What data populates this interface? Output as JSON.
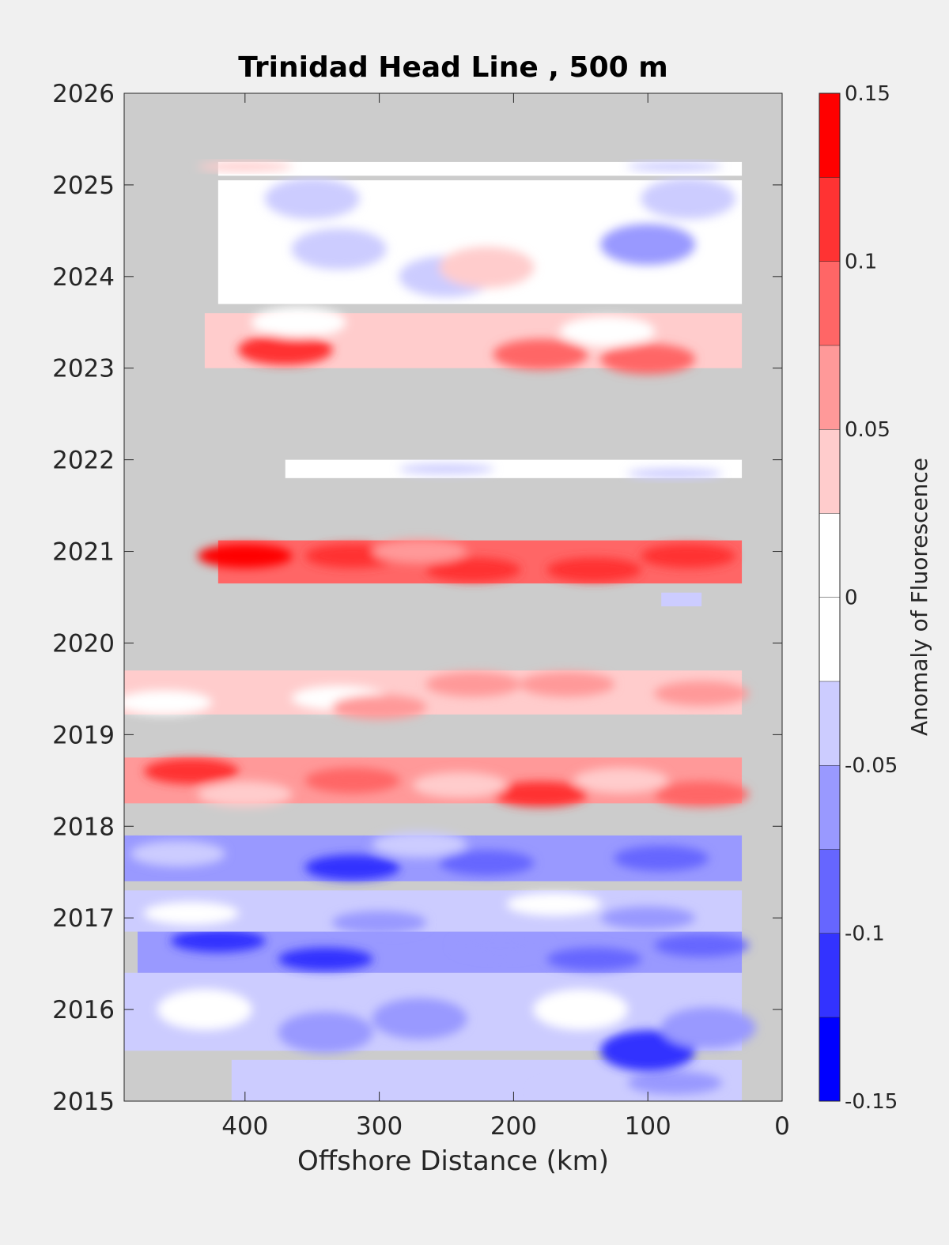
{
  "chart_data": {
    "type": "heatmap",
    "title": "Trinidad Head Line , 500 m",
    "xlabel": "Offshore Distance (km)",
    "ylabel": "",
    "xlim": [
      490,
      0
    ],
    "ylim": [
      2015,
      2026
    ],
    "x_direction": "reversed",
    "x_ticks": [
      400,
      300,
      200,
      100,
      0
    ],
    "y_ticks": [
      2015,
      2016,
      2017,
      2018,
      2019,
      2020,
      2021,
      2022,
      2023,
      2024,
      2025,
      2026
    ],
    "colorbar": {
      "label": "Anomaly of Fluorescence",
      "range": [
        -0.15,
        0.15
      ],
      "tick_values": [
        -0.15,
        -0.1,
        -0.05,
        0,
        0.05,
        0.1,
        0.15
      ],
      "tick_labels": [
        "-0.15",
        "-0.1",
        "-0.05",
        "0",
        "0.05",
        "0.1",
        "0.15"
      ],
      "levels": [
        {
          "from": -0.15,
          "to": -0.125,
          "color": "#0000ff"
        },
        {
          "from": -0.125,
          "to": -0.1,
          "color": "#3333ff"
        },
        {
          "from": -0.1,
          "to": -0.075,
          "color": "#6666ff"
        },
        {
          "from": -0.075,
          "to": -0.05,
          "color": "#9999ff"
        },
        {
          "from": -0.05,
          "to": -0.025,
          "color": "#ccccff"
        },
        {
          "from": -0.025,
          "to": 0,
          "color": "#ffffff"
        },
        {
          "from": 0,
          "to": 0.025,
          "color": "#ffffff"
        },
        {
          "from": 0.025,
          "to": 0.05,
          "color": "#ffcccc"
        },
        {
          "from": 0.05,
          "to": 0.075,
          "color": "#ff9999"
        },
        {
          "from": 0.075,
          "to": 0.1,
          "color": "#ff6666"
        },
        {
          "from": 0.1,
          "to": 0.125,
          "color": "#ff3333"
        },
        {
          "from": 0.125,
          "to": 0.15,
          "color": "#ff0000"
        }
      ]
    },
    "no_data_color": "#cccccc",
    "bands": [
      {
        "t_start": 2015.0,
        "t_end": 2015.45,
        "x_near": 30,
        "x_far": 410,
        "base": -0.03,
        "patches": [
          {
            "x": 80,
            "t": 2015.2,
            "value": -0.06
          },
          {
            "x": 150,
            "t": 2015.1,
            "value": -0.04
          }
        ]
      },
      {
        "t_start": 2015.55,
        "t_end": 2016.4,
        "x_near": 30,
        "x_far": 490,
        "base": -0.03,
        "patches": [
          {
            "x": 340,
            "t": 2015.75,
            "value": -0.06
          },
          {
            "x": 270,
            "t": 2015.9,
            "value": -0.07
          },
          {
            "x": 100,
            "t": 2015.55,
            "value": -0.1
          },
          {
            "x": 150,
            "t": 2016.0,
            "value": 0.0
          },
          {
            "x": 430,
            "t": 2016.0,
            "value": 0.0
          },
          {
            "x": 55,
            "t": 2015.8,
            "value": -0.06
          }
        ]
      },
      {
        "t_start": 2016.4,
        "t_end": 2016.85,
        "x_near": 30,
        "x_far": 480,
        "base": -0.06,
        "patches": [
          {
            "x": 340,
            "t": 2016.55,
            "value": -0.11
          },
          {
            "x": 420,
            "t": 2016.75,
            "value": -0.1
          },
          {
            "x": 140,
            "t": 2016.55,
            "value": -0.09
          },
          {
            "x": 60,
            "t": 2016.7,
            "value": -0.09
          },
          {
            "x": 210,
            "t": 2016.7,
            "value": -0.07
          }
        ]
      },
      {
        "t_start": 2016.85,
        "t_end": 2017.3,
        "x_near": 30,
        "x_far": 490,
        "base": -0.03,
        "patches": [
          {
            "x": 440,
            "t": 2017.05,
            "value": 0.0
          },
          {
            "x": 170,
            "t": 2017.15,
            "value": 0.0
          },
          {
            "x": 300,
            "t": 2016.95,
            "value": -0.07
          },
          {
            "x": 100,
            "t": 2017.0,
            "value": -0.06
          }
        ]
      },
      {
        "t_start": 2017.4,
        "t_end": 2017.9,
        "x_near": 30,
        "x_far": 490,
        "base": -0.06,
        "patches": [
          {
            "x": 320,
            "t": 2017.55,
            "value": -0.11
          },
          {
            "x": 220,
            "t": 2017.6,
            "value": -0.09
          },
          {
            "x": 90,
            "t": 2017.65,
            "value": -0.09
          },
          {
            "x": 450,
            "t": 2017.7,
            "value": -0.04
          },
          {
            "x": 270,
            "t": 2017.8,
            "value": -0.03
          }
        ]
      },
      {
        "t_start": 2018.25,
        "t_end": 2018.75,
        "x_near": 30,
        "x_far": 490,
        "base": 0.07,
        "patches": [
          {
            "x": 440,
            "t": 2018.6,
            "value": 0.11
          },
          {
            "x": 180,
            "t": 2018.35,
            "value": 0.12
          },
          {
            "x": 60,
            "t": 2018.35,
            "value": 0.1
          },
          {
            "x": 320,
            "t": 2018.5,
            "value": 0.08
          },
          {
            "x": 400,
            "t": 2018.35,
            "value": 0.04
          },
          {
            "x": 240,
            "t": 2018.45,
            "value": 0.04
          },
          {
            "x": 120,
            "t": 2018.5,
            "value": 0.04
          }
        ]
      },
      {
        "t_start": 2019.22,
        "t_end": 2019.7,
        "x_near": 30,
        "x_far": 490,
        "base": 0.035,
        "patches": [
          {
            "x": 460,
            "t": 2019.35,
            "value": 0.0
          },
          {
            "x": 330,
            "t": 2019.4,
            "value": 0.0
          },
          {
            "x": 160,
            "t": 2019.55,
            "value": 0.06
          },
          {
            "x": 230,
            "t": 2019.55,
            "value": 0.06
          },
          {
            "x": 60,
            "t": 2019.45,
            "value": 0.06
          },
          {
            "x": 300,
            "t": 2019.3,
            "value": 0.06
          }
        ]
      },
      {
        "t_start": 2020.4,
        "t_end": 2020.55,
        "x_near": 60,
        "x_far": 90,
        "base": -0.03,
        "patches": []
      },
      {
        "t_start": 2020.65,
        "t_end": 2021.12,
        "x_near": 30,
        "x_far": 420,
        "base": 0.08,
        "patches": [
          {
            "x": 400,
            "t": 2020.95,
            "value": 0.14
          },
          {
            "x": 320,
            "t": 2020.95,
            "value": 0.11
          },
          {
            "x": 140,
            "t": 2020.8,
            "value": 0.12
          },
          {
            "x": 70,
            "t": 2020.95,
            "value": 0.11
          },
          {
            "x": 230,
            "t": 2020.8,
            "value": 0.11
          },
          {
            "x": 270,
            "t": 2021.0,
            "value": 0.06
          }
        ]
      },
      {
        "t_start": 2021.8,
        "t_end": 2022.0,
        "x_near": 30,
        "x_far": 370,
        "base": 0.0,
        "patches": [
          {
            "x": 250,
            "t": 2021.9,
            "value": -0.04
          },
          {
            "x": 80,
            "t": 2021.85,
            "value": -0.04
          }
        ]
      },
      {
        "t_start": 2023.0,
        "t_end": 2023.6,
        "x_near": 30,
        "x_far": 430,
        "base": 0.04,
        "patches": [
          {
            "x": 370,
            "t": 2023.2,
            "value": 0.11
          },
          {
            "x": 180,
            "t": 2023.15,
            "value": 0.1
          },
          {
            "x": 100,
            "t": 2023.1,
            "value": 0.08
          },
          {
            "x": 130,
            "t": 2023.4,
            "value": 0.0
          },
          {
            "x": 360,
            "t": 2023.5,
            "value": 0.0
          }
        ]
      },
      {
        "t_start": 2023.7,
        "t_end": 2025.05,
        "x_near": 30,
        "x_far": 420,
        "base": 0.0,
        "patches": [
          {
            "x": 330,
            "t": 2024.3,
            "value": -0.04
          },
          {
            "x": 250,
            "t": 2024.0,
            "value": -0.04
          },
          {
            "x": 100,
            "t": 2024.35,
            "value": -0.05
          },
          {
            "x": 350,
            "t": 2024.85,
            "value": -0.04
          },
          {
            "x": 70,
            "t": 2024.85,
            "value": -0.04
          },
          {
            "x": 220,
            "t": 2024.1,
            "value": 0.04
          }
        ]
      },
      {
        "t_start": 2025.1,
        "t_end": 2025.25,
        "x_near": 30,
        "x_far": 420,
        "base": 0.0,
        "patches": [
          {
            "x": 80,
            "t": 2025.2,
            "value": -0.04
          },
          {
            "x": 400,
            "t": 2025.2,
            "value": 0.04
          }
        ]
      }
    ]
  }
}
